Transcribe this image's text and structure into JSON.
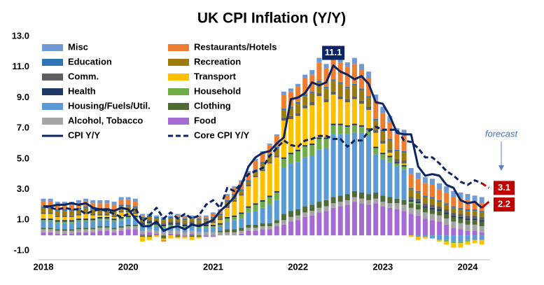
{
  "chart_data": {
    "type": "bar",
    "title": "UK CPI Inflation (Y/Y)",
    "annotation": "forecast",
    "categories": [
      "2018",
      null,
      null,
      null,
      null,
      null,
      null,
      null,
      null,
      null,
      null,
      null,
      "2020",
      null,
      null,
      null,
      null,
      null,
      null,
      null,
      null,
      null,
      null,
      null,
      "2021",
      null,
      null,
      null,
      null,
      null,
      null,
      null,
      null,
      null,
      null,
      null,
      "2022",
      null,
      null,
      null,
      null,
      null,
      null,
      null,
      null,
      null,
      null,
      null,
      "2023",
      null,
      null,
      null,
      null,
      null,
      null,
      null,
      null,
      null,
      null,
      null,
      "2024",
      null,
      null,
      null
    ],
    "ylim": [
      -1,
      13
    ],
    "yticks": [
      {
        "value": -1,
        "label": "-1.0"
      },
      {
        "value": 1,
        "label": "1.0"
      },
      {
        "value": 3,
        "label": "3.0"
      },
      {
        "value": 5,
        "label": "5.0"
      },
      {
        "value": 7,
        "label": "7.0"
      },
      {
        "value": 9,
        "label": "9.0"
      },
      {
        "value": 11,
        "label": "11.0"
      },
      {
        "value": 13,
        "label": "13.0"
      }
    ],
    "series": [
      {
        "name": "Misc",
        "color": "#6f9ad6",
        "values": [
          0.2,
          0.2,
          0.2,
          0.2,
          0.2,
          0.2,
          0.2,
          0.2,
          0.2,
          0.2,
          0.2,
          0.2,
          0.2,
          0.2,
          0.1,
          0.1,
          0.1,
          0.1,
          0.1,
          0.1,
          0.1,
          0.1,
          0.1,
          0.1,
          0.1,
          0.1,
          0.1,
          0.1,
          0.1,
          0.1,
          0.1,
          0.1,
          0.1,
          0.1,
          0.2,
          0.2,
          0.2,
          0.2,
          0.3,
          0.3,
          0.3,
          0.3,
          0.3,
          0.3,
          0.4,
          0.4,
          0.4,
          0.4,
          0.4,
          0.4,
          0.4,
          0.4,
          0.4,
          0.4,
          0.4,
          0.4,
          0.4,
          0.4,
          0.4,
          0.4,
          0.4,
          0.4,
          0.4,
          null
        ]
      },
      {
        "name": "Restaurants/Hotels",
        "color": "#ed7d31",
        "values": [
          0.3,
          0.3,
          0.3,
          0.3,
          0.3,
          0.3,
          0.3,
          0.3,
          0.3,
          0.3,
          0.3,
          0.3,
          0.3,
          0.3,
          0.1,
          0.0,
          0.0,
          -0.1,
          0.0,
          0.1,
          0.1,
          0.0,
          0.1,
          0.1,
          0.2,
          0.2,
          0.3,
          0.4,
          0.5,
          0.5,
          0.6,
          0.6,
          0.6,
          0.7,
          0.9,
          1.0,
          1.0,
          1.1,
          1.1,
          1.2,
          1.2,
          1.3,
          1.3,
          1.3,
          1.3,
          1.2,
          1.2,
          1.2,
          1.1,
          1.1,
          1.0,
          1.0,
          0.9,
          0.8,
          0.8,
          0.8,
          0.7,
          0.7,
          0.6,
          0.6,
          0.6,
          0.5,
          0.5,
          null
        ]
      },
      {
        "name": "Education",
        "color": "#2e75b6",
        "values": [
          0.1,
          0.1,
          0.1,
          0.1,
          0.1,
          0.1,
          0.1,
          0.1,
          0.1,
          0.1,
          0.1,
          0.1,
          0.1,
          0.1,
          0.1,
          0.1,
          0.1,
          0.1,
          0.1,
          0.1,
          0.1,
          0.1,
          0.1,
          0.1,
          0.1,
          0.1,
          0.1,
          0.1,
          0.1,
          0.1,
          0.1,
          0.1,
          0.1,
          0.1,
          0.1,
          0.1,
          0.1,
          0.1,
          0.1,
          0.1,
          0.1,
          0.1,
          0.1,
          0.1,
          0.1,
          0.1,
          0.1,
          0.1,
          0.1,
          0.1,
          0.1,
          0.1,
          0.1,
          0.1,
          0.1,
          0.1,
          0.1,
          0.1,
          0.1,
          0.1,
          0.1,
          0.1,
          0.1,
          null
        ]
      },
      {
        "name": "Recreation",
        "color": "#9c7a0e",
        "values": [
          0.3,
          0.3,
          0.3,
          0.3,
          0.3,
          0.3,
          0.3,
          0.3,
          0.3,
          0.3,
          0.3,
          0.3,
          0.3,
          0.3,
          0.2,
          0.2,
          0.2,
          0.2,
          0.2,
          0.2,
          0.2,
          0.2,
          0.2,
          0.2,
          0.2,
          0.2,
          0.3,
          0.3,
          0.2,
          0.2,
          0.3,
          0.4,
          0.4,
          0.5,
          0.5,
          0.5,
          0.6,
          0.6,
          0.6,
          0.7,
          0.7,
          0.7,
          0.8,
          0.7,
          0.7,
          0.7,
          0.6,
          0.6,
          0.6,
          0.6,
          0.5,
          0.5,
          0.5,
          0.4,
          0.4,
          0.4,
          0.3,
          0.3,
          0.3,
          0.3,
          0.3,
          0.3,
          0.3,
          null
        ]
      },
      {
        "name": "Comm.",
        "color": "#5f5f5f",
        "values": [
          0.1,
          0.1,
          0.1,
          0.1,
          0.1,
          0.1,
          0.1,
          0.1,
          0.1,
          0.1,
          0.1,
          0.1,
          0.1,
          0.1,
          0.1,
          0.1,
          0.1,
          0.1,
          0.1,
          0.1,
          0.1,
          0.1,
          0.1,
          0.1,
          0.1,
          0.1,
          0.1,
          0.1,
          0.1,
          0.1,
          0.1,
          0.1,
          0.1,
          0.1,
          0.2,
          0.2,
          0.2,
          0.2,
          0.2,
          0.2,
          0.2,
          0.2,
          0.2,
          0.2,
          0.2,
          0.2,
          0.2,
          0.2,
          0.2,
          0.2,
          0.2,
          0.2,
          0.2,
          0.2,
          0.2,
          0.2,
          0.2,
          0.2,
          0.2,
          0.2,
          0.2,
          0.2,
          0.2,
          null
        ]
      },
      {
        "name": "Transport",
        "color": "#ffc000",
        "values": [
          0.3,
          0.3,
          0.2,
          0.2,
          0.2,
          0.2,
          0.3,
          0.2,
          0.1,
          0.1,
          0.1,
          0.3,
          0.2,
          0.1,
          -0.3,
          -0.2,
          -0.1,
          -0.1,
          -0.2,
          -0.1,
          -0.1,
          -0.2,
          -0.1,
          0.0,
          0.1,
          0.2,
          0.6,
          0.9,
          1.1,
          1.3,
          1.7,
          1.9,
          2.1,
          2.2,
          2.4,
          2.2,
          2.2,
          2.4,
          2.5,
          2.7,
          2.3,
          1.9,
          1.6,
          1.5,
          1.6,
          1.4,
          1.2,
          0.9,
          0.6,
          0.2,
          0.0,
          0.1,
          -0.1,
          -0.2,
          -0.1,
          0.0,
          -0.1,
          -0.2,
          -0.3,
          -0.3,
          -0.2,
          -0.2,
          -0.3,
          null
        ]
      },
      {
        "name": "Health",
        "color": "#203864",
        "values": [
          0.1,
          0.1,
          0.1,
          0.1,
          0.1,
          0.1,
          0.1,
          0.1,
          0.1,
          0.1,
          0.1,
          0.1,
          0.1,
          0.1,
          0.1,
          0.1,
          0.1,
          0.1,
          0.1,
          0.1,
          0.1,
          0.1,
          0.1,
          0.1,
          0.1,
          0.1,
          0.1,
          0.1,
          0.1,
          0.1,
          0.1,
          0.1,
          0.1,
          0.1,
          0.1,
          0.1,
          0.1,
          0.1,
          0.1,
          0.1,
          0.1,
          0.1,
          0.1,
          0.1,
          0.1,
          0.1,
          0.1,
          0.1,
          0.1,
          0.1,
          0.1,
          0.1,
          0.1,
          0.1,
          0.1,
          0.1,
          0.1,
          0.1,
          0.1,
          0.1,
          0.1,
          0.1,
          0.1,
          null
        ]
      },
      {
        "name": "Household",
        "color": "#70ad47",
        "values": [
          0.1,
          0.1,
          0.1,
          0.1,
          0.1,
          0.1,
          0.1,
          0.1,
          0.1,
          0.1,
          0.1,
          0.1,
          0.1,
          0.1,
          0.1,
          0.1,
          0.1,
          0.1,
          0.1,
          0.1,
          0.1,
          0.1,
          0.1,
          0.1,
          0.1,
          0.1,
          0.2,
          0.2,
          0.3,
          0.3,
          0.4,
          0.4,
          0.5,
          0.5,
          0.6,
          0.6,
          0.7,
          0.7,
          0.7,
          0.7,
          0.6,
          0.6,
          0.6,
          0.5,
          0.5,
          0.4,
          0.4,
          0.4,
          0.3,
          0.3,
          0.2,
          0.2,
          0.1,
          0.1,
          0.0,
          0.0,
          0.0,
          -0.1,
          -0.1,
          -0.1,
          -0.1,
          0.0,
          0.0,
          null
        ]
      },
      {
        "name": "Housing/Fuels/Util.",
        "color": "#5b9bd5",
        "values": [
          0.4,
          0.4,
          0.4,
          0.4,
          0.4,
          0.4,
          0.4,
          0.4,
          0.4,
          0.4,
          0.4,
          0.4,
          0.4,
          0.4,
          0.3,
          0.3,
          0.3,
          0.3,
          0.3,
          0.3,
          0.3,
          0.3,
          0.3,
          0.3,
          0.3,
          0.3,
          0.5,
          0.6,
          0.6,
          0.8,
          0.9,
          1.0,
          1.2,
          1.3,
          3.0,
          3.1,
          3.1,
          3.2,
          3.2,
          3.4,
          3.4,
          4.1,
          4.0,
          3.9,
          3.8,
          3.9,
          3.8,
          2.5,
          2.4,
          2.3,
          2.1,
          2.0,
          0.0,
          -0.1,
          -0.1,
          -0.2,
          -0.3,
          -0.3,
          -0.4,
          -0.4,
          -0.3,
          -0.3,
          -0.3,
          null
        ]
      },
      {
        "name": "Clothing",
        "color": "#4f6b35",
        "values": [
          0.1,
          0.1,
          0.1,
          0.1,
          0.1,
          0.1,
          0.1,
          0.1,
          0.1,
          0.1,
          0.1,
          0.1,
          0.1,
          0.1,
          -0.1,
          -0.1,
          0.0,
          -0.2,
          0.0,
          -0.1,
          0.0,
          -0.1,
          -0.1,
          0.0,
          0.0,
          0.1,
          0.2,
          0.2,
          0.2,
          0.2,
          0.2,
          0.2,
          0.2,
          0.2,
          0.4,
          0.4,
          0.4,
          0.4,
          0.4,
          0.4,
          0.4,
          0.4,
          0.4,
          0.4,
          0.4,
          0.4,
          0.4,
          0.4,
          0.4,
          0.4,
          0.3,
          0.3,
          0.3,
          0.3,
          0.3,
          0.3,
          0.3,
          0.3,
          0.3,
          0.3,
          0.3,
          0.3,
          0.3,
          null
        ]
      },
      {
        "name": "Alcohol, Tobacco",
        "color": "#a5a5a5",
        "values": [
          0.2,
          0.2,
          0.2,
          0.2,
          0.2,
          0.2,
          0.2,
          0.2,
          0.2,
          0.2,
          0.2,
          0.2,
          0.2,
          0.2,
          0.2,
          0.2,
          0.2,
          0.2,
          0.2,
          0.2,
          0.2,
          0.2,
          0.2,
          0.2,
          0.2,
          0.2,
          0.2,
          0.2,
          0.2,
          0.2,
          0.2,
          0.2,
          0.2,
          0.2,
          0.3,
          0.3,
          0.3,
          0.3,
          0.3,
          0.3,
          0.3,
          0.3,
          0.3,
          0.3,
          0.3,
          0.3,
          0.3,
          0.3,
          0.3,
          0.3,
          0.4,
          0.4,
          0.4,
          0.4,
          0.4,
          0.4,
          0.4,
          0.4,
          0.4,
          0.4,
          0.4,
          0.4,
          0.4,
          null
        ]
      },
      {
        "name": "Food",
        "color": "#a66bd3",
        "values": [
          0.2,
          0.2,
          0.1,
          0.1,
          0.1,
          0.2,
          0.2,
          0.2,
          0.3,
          0.3,
          0.2,
          0.3,
          0.4,
          0.4,
          0.1,
          0.2,
          0.1,
          0.0,
          0.1,
          0.1,
          -0.1,
          0.1,
          0.0,
          -0.1,
          -0.1,
          0.0,
          0.0,
          0.0,
          0.1,
          0.3,
          0.3,
          0.4,
          0.4,
          0.6,
          0.7,
          0.9,
          1.0,
          1.2,
          1.3,
          1.5,
          1.6,
          1.8,
          1.9,
          2.0,
          2.2,
          2.1,
          2.0,
          2.1,
          1.9,
          1.8,
          1.7,
          1.6,
          1.4,
          1.3,
          1.1,
          1.0,
          0.9,
          0.7,
          0.5,
          0.4,
          0.3,
          0.3,
          0.2,
          null
        ]
      }
    ],
    "lines": [
      {
        "name": "CPI Y/Y",
        "color": "#0b2463",
        "dash": false,
        "values": [
          1.9,
          1.9,
          2.0,
          2.0,
          2.1,
          2.0,
          2.1,
          1.8,
          1.7,
          1.7,
          1.6,
          1.8,
          1.7,
          1.1,
          0.6,
          0.6,
          0.9,
          0.3,
          0.5,
          0.6,
          0.4,
          0.7,
          0.6,
          0.8,
          1.0,
          1.6,
          2.0,
          2.5,
          3.3,
          4.5,
          5.1,
          5.4,
          5.5,
          6.0,
          6.4,
          8.9,
          9.0,
          9.3,
          10.0,
          9.8,
          10.0,
          11.1,
          10.7,
          10.5,
          10.2,
          10.4,
          9.9,
          8.7,
          8.6,
          7.8,
          6.7,
          6.6,
          6.6,
          4.5,
          3.9,
          4.0,
          3.9,
          3.3,
          3.1,
          2.3,
          2.1,
          2.2,
          1.8,
          null
        ]
      },
      {
        "name": "Core CPI Y/Y",
        "color": "#0b2463",
        "dash": true,
        "values": [
          1.9,
          1.8,
          1.7,
          1.8,
          1.7,
          1.7,
          1.4,
          1.6,
          1.7,
          1.6,
          1.4,
          1.2,
          1.4,
          1.8,
          0.9,
          1.3,
          1.8,
          1.1,
          1.5,
          1.1,
          1.4,
          1.1,
          1.3,
          2.0,
          2.3,
          1.8,
          3.1,
          2.9,
          3.4,
          4.0,
          4.2,
          4.4,
          5.2,
          5.7,
          6.2,
          5.9,
          5.8,
          6.2,
          6.3,
          6.5,
          6.5,
          6.3,
          6.3,
          5.8,
          6.2,
          6.2,
          6.8,
          7.1,
          6.9,
          6.9,
          6.9,
          6.2,
          6.1,
          5.7,
          5.1,
          5.1,
          4.7,
          4.2,
          3.9,
          3.5,
          3.3,
          3.6,
          3.4,
          null
        ]
      }
    ],
    "forecast": [
      {
        "color": "#c00000",
        "dash": false,
        "values": [
          null,
          null,
          null,
          null,
          null,
          null,
          null,
          null,
          null,
          null,
          null,
          null,
          null,
          null,
          null,
          null,
          null,
          null,
          null,
          null,
          null,
          null,
          null,
          null,
          null,
          null,
          null,
          null,
          null,
          null,
          null,
          null,
          null,
          null,
          null,
          null,
          null,
          null,
          null,
          null,
          null,
          null,
          null,
          null,
          null,
          null,
          null,
          null,
          null,
          null,
          null,
          null,
          null,
          null,
          null,
          null,
          null,
          null,
          null,
          null,
          null,
          null,
          1.8,
          2.2
        ]
      },
      {
        "color": "#c00000",
        "dash": true,
        "values": [
          null,
          null,
          null,
          null,
          null,
          null,
          null,
          null,
          null,
          null,
          null,
          null,
          null,
          null,
          null,
          null,
          null,
          null,
          null,
          null,
          null,
          null,
          null,
          null,
          null,
          null,
          null,
          null,
          null,
          null,
          null,
          null,
          null,
          null,
          null,
          null,
          null,
          null,
          null,
          null,
          null,
          null,
          null,
          null,
          null,
          null,
          null,
          null,
          null,
          null,
          null,
          null,
          null,
          null,
          null,
          null,
          null,
          null,
          null,
          null,
          null,
          null,
          3.4,
          3.1
        ]
      }
    ]
  }
}
